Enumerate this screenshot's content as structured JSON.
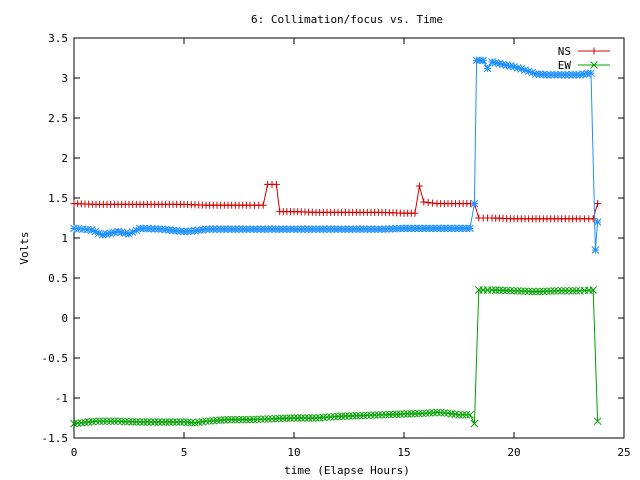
{
  "chart_data": {
    "type": "line",
    "title": "6: Collimation/focus vs. Time",
    "xlabel": "time (Elapse Hours)",
    "ylabel": "Volts",
    "xlim": [
      0,
      25
    ],
    "ylim": [
      -1.5,
      3.5
    ],
    "xticks": [
      "0",
      "5",
      "10",
      "15",
      "20",
      "25"
    ],
    "yticks": [
      "-1.5",
      "-1",
      "-0.5",
      "0",
      "0.5",
      "1",
      "1.5",
      "2",
      "2.5",
      "3",
      "3.5"
    ],
    "grid": false,
    "legend_position": "top-right",
    "series": [
      {
        "name": "NS",
        "color": "#d40000",
        "marker": "plus",
        "points": [
          [
            0,
            1.43
          ],
          [
            1,
            1.42
          ],
          [
            2,
            1.42
          ],
          [
            3,
            1.42
          ],
          [
            4,
            1.42
          ],
          [
            5,
            1.42
          ],
          [
            6,
            1.41
          ],
          [
            7,
            1.41
          ],
          [
            8,
            1.41
          ],
          [
            8.6,
            1.41
          ],
          [
            8.8,
            1.67
          ],
          [
            9.0,
            1.67
          ],
          [
            9.2,
            1.67
          ],
          [
            9.35,
            1.33
          ],
          [
            10,
            1.33
          ],
          [
            11,
            1.32
          ],
          [
            12,
            1.32
          ],
          [
            13,
            1.32
          ],
          [
            14,
            1.32
          ],
          [
            15,
            1.31
          ],
          [
            15.5,
            1.31
          ],
          [
            15.7,
            1.65
          ],
          [
            15.9,
            1.45
          ],
          [
            16.5,
            1.43
          ],
          [
            17,
            1.43
          ],
          [
            18.2,
            1.43
          ],
          [
            18.4,
            1.25
          ],
          [
            19,
            1.25
          ],
          [
            20,
            1.24
          ],
          [
            21,
            1.24
          ],
          [
            22,
            1.24
          ],
          [
            23,
            1.24
          ],
          [
            23.6,
            1.24
          ],
          [
            23.8,
            1.43
          ]
        ]
      },
      {
        "name": "EW",
        "color": "#00a000",
        "marker": "cross",
        "points": [
          [
            0,
            -1.32
          ],
          [
            1,
            -1.29
          ],
          [
            2,
            -1.29
          ],
          [
            3,
            -1.3
          ],
          [
            4,
            -1.3
          ],
          [
            5,
            -1.3
          ],
          [
            5.5,
            -1.31
          ],
          [
            6,
            -1.29
          ],
          [
            7,
            -1.27
          ],
          [
            8,
            -1.27
          ],
          [
            9,
            -1.26
          ],
          [
            10,
            -1.25
          ],
          [
            11,
            -1.25
          ],
          [
            12,
            -1.23
          ],
          [
            13,
            -1.22
          ],
          [
            14,
            -1.21
          ],
          [
            15,
            -1.2
          ],
          [
            16,
            -1.19
          ],
          [
            16.5,
            -1.18
          ],
          [
            17,
            -1.19
          ],
          [
            17.5,
            -1.21
          ],
          [
            18,
            -1.21
          ],
          [
            18.2,
            -1.32
          ],
          [
            18.4,
            0.35
          ],
          [
            19,
            0.35
          ],
          [
            20,
            0.34
          ],
          [
            21,
            0.33
          ],
          [
            22,
            0.34
          ],
          [
            23,
            0.34
          ],
          [
            23.6,
            0.35
          ],
          [
            23.8,
            -1.29
          ]
        ]
      },
      {
        "name": "",
        "color": "#1e90ff",
        "marker": "star",
        "points": [
          [
            0,
            1.12
          ],
          [
            0.8,
            1.1
          ],
          [
            1.3,
            1.04
          ],
          [
            2,
            1.08
          ],
          [
            2.5,
            1.05
          ],
          [
            3,
            1.12
          ],
          [
            4,
            1.11
          ],
          [
            5,
            1.08
          ],
          [
            5.5,
            1.09
          ],
          [
            6,
            1.11
          ],
          [
            7,
            1.11
          ],
          [
            8,
            1.11
          ],
          [
            9,
            1.11
          ],
          [
            10,
            1.11
          ],
          [
            11,
            1.11
          ],
          [
            12,
            1.11
          ],
          [
            13,
            1.11
          ],
          [
            14,
            1.11
          ],
          [
            15,
            1.12
          ],
          [
            16,
            1.12
          ],
          [
            17,
            1.12
          ],
          [
            18,
            1.12
          ],
          [
            18.2,
            1.43
          ],
          [
            18.3,
            3.22
          ],
          [
            18.6,
            3.22
          ],
          [
            18.8,
            3.12
          ],
          [
            19,
            3.2
          ],
          [
            19.5,
            3.17
          ],
          [
            20,
            3.14
          ],
          [
            20.5,
            3.1
          ],
          [
            21,
            3.05
          ],
          [
            21.5,
            3.04
          ],
          [
            22,
            3.04
          ],
          [
            22.5,
            3.04
          ],
          [
            23,
            3.04
          ],
          [
            23.5,
            3.06
          ],
          [
            23.7,
            0.85
          ],
          [
            23.8,
            1.2
          ]
        ]
      }
    ]
  }
}
